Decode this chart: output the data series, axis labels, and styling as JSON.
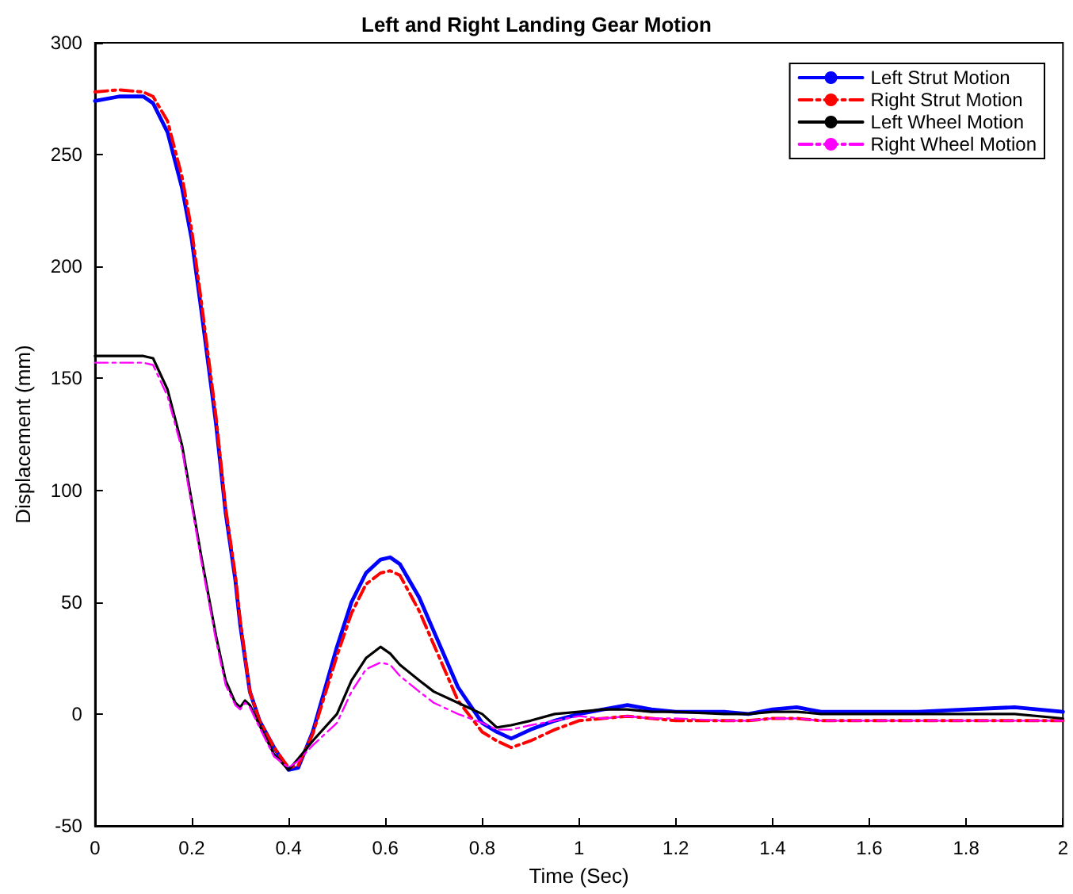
{
  "chart_data": {
    "type": "line",
    "title": "Left and Right Landing Gear Motion",
    "xlabel": "Time (Sec)",
    "ylabel": "Displacement (mm)",
    "xlim": [
      0,
      2
    ],
    "xticks": [
      0,
      0.2,
      0.4,
      0.6,
      0.8,
      1,
      1.2,
      1.4,
      1.6,
      1.8,
      2
    ],
    "ylim": [
      -50,
      300
    ],
    "yticks": [
      -50,
      0,
      50,
      100,
      150,
      200,
      250,
      300
    ],
    "grid": false,
    "legend": "top right",
    "marker": "none",
    "x": [
      0,
      0.05,
      0.1,
      0.12,
      0.15,
      0.18,
      0.2,
      0.22,
      0.25,
      0.27,
      0.29,
      0.3,
      0.31,
      0.32,
      0.34,
      0.37,
      0.4,
      0.42,
      0.45,
      0.5,
      0.53,
      0.56,
      0.59,
      0.61,
      0.63,
      0.67,
      0.7,
      0.75,
      0.8,
      0.83,
      0.86,
      0.9,
      0.95,
      1.0,
      1.05,
      1.1,
      1.15,
      1.2,
      1.3,
      1.35,
      1.4,
      1.45,
      1.5,
      1.6,
      1.7,
      1.8,
      1.9,
      2.0
    ],
    "series": [
      {
        "name": "Left Strut Motion",
        "color": "#0000ff",
        "line_style": "solid",
        "values": [
          274,
          276,
          276,
          273,
          260,
          235,
          212,
          180,
          130,
          90,
          60,
          40,
          25,
          10,
          -3,
          -15,
          -25,
          -24,
          -8,
          30,
          50,
          63,
          69,
          70,
          67,
          52,
          37,
          12,
          -4,
          -8,
          -11,
          -7,
          -3,
          0,
          2,
          4,
          2,
          1,
          1,
          0,
          2,
          3,
          1,
          1,
          1,
          2,
          3,
          1
        ]
      },
      {
        "name": "Right Strut Motion",
        "color": "#ff0000",
        "line_style": "dashdot",
        "values": [
          278,
          279,
          278,
          276,
          265,
          240,
          216,
          184,
          133,
          92,
          62,
          42,
          26,
          10,
          -3,
          -15,
          -24,
          -23,
          -9,
          26,
          45,
          58,
          63,
          64,
          62,
          46,
          31,
          6,
          -8,
          -12,
          -15,
          -12,
          -7,
          -3,
          -2,
          -1,
          -2,
          -3,
          -3,
          -3,
          -2,
          -2,
          -3,
          -3,
          -3,
          -3,
          -3,
          -3
        ]
      },
      {
        "name": "Left Wheel Motion",
        "color": "#000000",
        "line_style": "solid",
        "values": [
          160,
          160,
          160,
          159,
          145,
          120,
          95,
          70,
          35,
          15,
          5,
          3,
          6,
          4,
          -5,
          -18,
          -25,
          -20,
          -12,
          0,
          15,
          25,
          30,
          27,
          22,
          15,
          10,
          5,
          0,
          -6,
          -5,
          -3,
          0,
          1,
          2,
          2,
          1,
          1,
          0,
          0,
          1,
          1,
          0,
          0,
          0,
          0,
          0,
          -2
        ]
      },
      {
        "name": "Right Wheel Motion",
        "color": "#ff00ff",
        "line_style": "dashdot",
        "values": [
          157,
          157,
          157,
          156,
          142,
          118,
          93,
          68,
          33,
          13,
          4,
          2,
          5,
          3,
          -6,
          -19,
          -24,
          -21,
          -14,
          -4,
          10,
          20,
          23,
          22,
          17,
          10,
          5,
          0,
          -4,
          -7,
          -7,
          -5,
          -3,
          -1,
          -2,
          -1,
          -2,
          -2,
          -3,
          -3,
          -2,
          -2,
          -3,
          -3,
          -3,
          -3,
          -3,
          -3
        ]
      }
    ]
  }
}
